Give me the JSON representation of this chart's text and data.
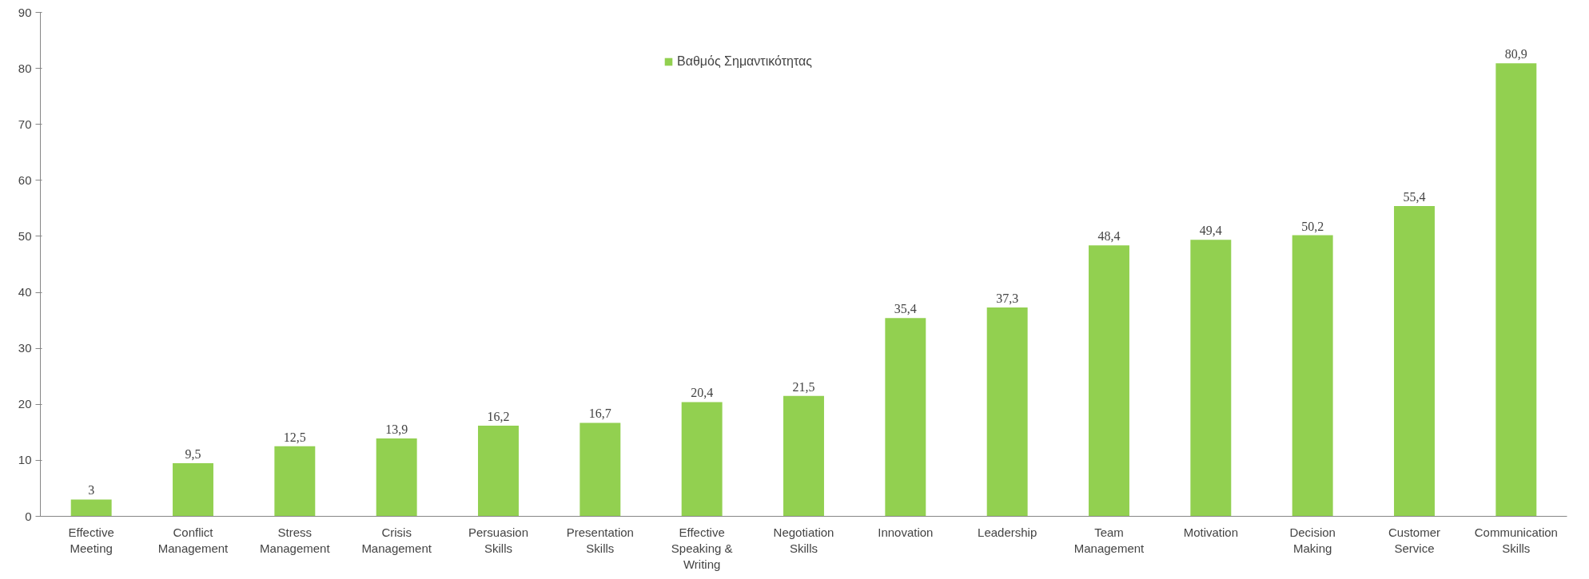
{
  "chart_data": {
    "type": "bar",
    "categories": [
      "Effective\nMeeting",
      "Conflict\nManagement",
      "Stress\nManagement",
      "Crisis\nManagement",
      "Persuasion\nSkills",
      "Presentation\nSkills",
      "Effective\nSpeaking &\nWriting",
      "Negotiation\nSkills",
      "Innovation",
      "Leadership",
      "Team\nManagement",
      "Motivation",
      "Decision\nMaking",
      "Customer\nService",
      "Communication\nSkills"
    ],
    "series": [
      {
        "name": "Βαθμός Σημαντικότητας",
        "color": "#92d050",
        "values": [
          3,
          9.5,
          12.5,
          13.9,
          16.2,
          16.7,
          20.4,
          21.5,
          35.4,
          37.3,
          48.4,
          49.4,
          50.2,
          55.4,
          80.9
        ],
        "value_labels": [
          "3",
          "9,5",
          "12,5",
          "13,9",
          "16,2",
          "16,7",
          "20,4",
          "21,5",
          "35,4",
          "37,3",
          "48,4",
          "49,4",
          "50,2",
          "55,4",
          "80,9"
        ]
      }
    ],
    "ylim": [
      0,
      90
    ],
    "yticks": [
      0,
      10,
      20,
      30,
      40,
      50,
      60,
      70,
      80,
      90
    ],
    "grid": false,
    "legend": "top"
  }
}
